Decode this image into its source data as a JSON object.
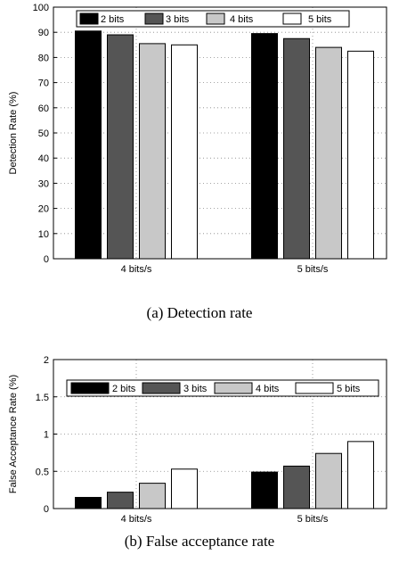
{
  "chart_data": [
    {
      "type": "bar",
      "categories": [
        "4 bits/s",
        "5 bits/s"
      ],
      "series": [
        {
          "name": "2 bits",
          "values": [
            90.5,
            89.5
          ],
          "color": "#000000"
        },
        {
          "name": "3 bits",
          "values": [
            89,
            87.5
          ],
          "color": "#555555"
        },
        {
          "name": "4 bits",
          "values": [
            85.5,
            84
          ],
          "color": "#c8c8c8"
        },
        {
          "name": "5 bits",
          "values": [
            85,
            82.5
          ],
          "color": "#ffffff"
        }
      ],
      "ylabel": "Detection Rate (%)",
      "ylim": [
        0,
        100
      ],
      "yticks": [
        "0",
        "10",
        "20",
        "30",
        "40",
        "50",
        "60",
        "70",
        "80",
        "90",
        "100"
      ],
      "grid": true,
      "legend_position": "top",
      "caption": "(a)  Detection rate"
    },
    {
      "type": "bar",
      "categories": [
        "4 bits/s",
        "5 bits/s"
      ],
      "series": [
        {
          "name": "2 bits",
          "values": [
            0.15,
            0.49
          ],
          "color": "#000000"
        },
        {
          "name": "3 bits",
          "values": [
            0.22,
            0.57
          ],
          "color": "#555555"
        },
        {
          "name": "4 bits",
          "values": [
            0.34,
            0.74
          ],
          "color": "#c8c8c8"
        },
        {
          "name": "5 bits",
          "values": [
            0.53,
            0.9
          ],
          "color": "#ffffff"
        }
      ],
      "ylabel": "False Acceptance Rate (%)",
      "ylim": [
        0,
        2
      ],
      "yticks": [
        "0",
        "0.5",
        "1",
        "1.5",
        "2"
      ],
      "grid": true,
      "legend_position": "top",
      "caption": "(b)  False acceptance rate"
    }
  ]
}
